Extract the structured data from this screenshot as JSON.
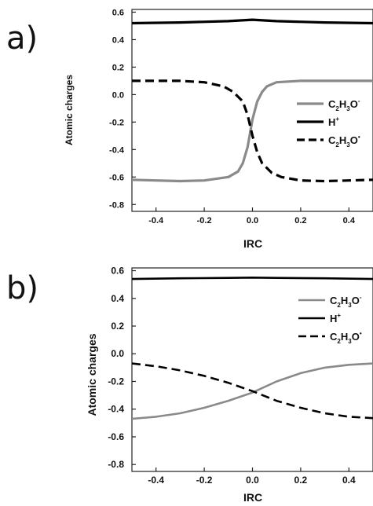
{
  "panels": [
    {
      "label": "a)",
      "ylabel": "Atomic charges",
      "xlabel": "IRC",
      "legend": [
        {
          "base": "C",
          "s1": "2",
          "mid": "H",
          "s2": "3",
          "end": "O",
          "sup": "-"
        },
        {
          "base": "H",
          "sup": "+"
        },
        {
          "base": "C",
          "s1": "2",
          "mid": "H",
          "s2": "3",
          "end": "O",
          "sup": "•"
        }
      ]
    },
    {
      "label": "b)",
      "ylabel": "Atomic charges",
      "xlabel": "IRC",
      "legend": [
        {
          "base": "C",
          "s1": "2",
          "mid": "H",
          "s2": "3",
          "end": "O",
          "sup": "-"
        },
        {
          "base": "H",
          "sup": "+"
        },
        {
          "base": "C",
          "s1": "2",
          "mid": "H",
          "s2": "3",
          "end": "O",
          "sup": "•"
        }
      ]
    }
  ],
  "chart_data": [
    {
      "type": "line",
      "xlabel": "IRC",
      "ylabel": "Atomic charges",
      "xlim": [
        -0.5,
        0.5
      ],
      "ylim": [
        -0.85,
        0.62
      ],
      "xticks": [
        -0.4,
        -0.2,
        0.0,
        0.2,
        0.4
      ],
      "yticks": [
        -0.8,
        -0.6,
        -0.4,
        -0.2,
        0.0,
        0.2,
        0.4,
        0.6
      ],
      "xtick_labels": [
        "-0.4",
        "-0.2",
        "0.0",
        "0.2",
        "0.4"
      ],
      "ytick_labels": [
        "-0.8",
        "-0.6",
        "-0.4",
        "-0.2",
        "0.0",
        "0.2",
        "0.4",
        "0.6"
      ],
      "legend_position": "right",
      "series": [
        {
          "style": "solid",
          "color": "#8a8a8a",
          "x": [
            -0.5,
            -0.4,
            -0.3,
            -0.2,
            -0.1,
            -0.06,
            -0.04,
            -0.02,
            0.0,
            0.02,
            0.04,
            0.06,
            0.1,
            0.2,
            0.3,
            0.4,
            0.5
          ],
          "y": [
            -0.62,
            -0.625,
            -0.63,
            -0.625,
            -0.6,
            -0.56,
            -0.5,
            -0.38,
            -0.18,
            -0.05,
            0.02,
            0.06,
            0.09,
            0.1,
            0.1,
            0.1,
            0.1
          ]
        },
        {
          "style": "solid",
          "color": "#000000",
          "x": [
            -0.5,
            -0.3,
            -0.1,
            0.0,
            0.1,
            0.3,
            0.5
          ],
          "y": [
            0.52,
            0.525,
            0.535,
            0.545,
            0.535,
            0.525,
            0.52
          ]
        },
        {
          "style": "dashed",
          "color": "#000000",
          "x": [
            -0.5,
            -0.4,
            -0.3,
            -0.2,
            -0.12,
            -0.08,
            -0.04,
            -0.02,
            0.0,
            0.02,
            0.04,
            0.08,
            0.12,
            0.2,
            0.3,
            0.4,
            0.5
          ],
          "y": [
            0.1,
            0.1,
            0.1,
            0.09,
            0.06,
            0.02,
            -0.05,
            -0.15,
            -0.3,
            -0.42,
            -0.5,
            -0.57,
            -0.6,
            -0.625,
            -0.63,
            -0.625,
            -0.62
          ]
        }
      ]
    },
    {
      "type": "line",
      "xlabel": "IRC",
      "ylabel": "Atomic charges",
      "xlim": [
        -0.5,
        0.5
      ],
      "ylim": [
        -0.85,
        0.62
      ],
      "xticks": [
        -0.4,
        -0.2,
        0.0,
        0.2,
        0.4
      ],
      "yticks": [
        -0.8,
        -0.6,
        -0.4,
        -0.2,
        0.0,
        0.2,
        0.4,
        0.6
      ],
      "xtick_labels": [
        "-0.4",
        "-0.2",
        "0.0",
        "0.2",
        "0.4"
      ],
      "ytick_labels": [
        "-0.8",
        "-0.6",
        "-0.4",
        "-0.2",
        "0.0",
        "0.2",
        "0.4",
        "0.6"
      ],
      "legend_position": "right",
      "series": [
        {
          "style": "solid",
          "color": "#8a8a8a",
          "x": [
            -0.5,
            -0.4,
            -0.3,
            -0.2,
            -0.1,
            0.0,
            0.1,
            0.2,
            0.3,
            0.4,
            0.5
          ],
          "y": [
            -0.47,
            -0.455,
            -0.43,
            -0.39,
            -0.34,
            -0.28,
            -0.2,
            -0.14,
            -0.1,
            -0.08,
            -0.07
          ]
        },
        {
          "style": "solid",
          "color": "#000000",
          "x": [
            -0.5,
            -0.3,
            -0.1,
            0.0,
            0.1,
            0.3,
            0.5
          ],
          "y": [
            0.54,
            0.545,
            0.548,
            0.55,
            0.548,
            0.545,
            0.54
          ]
        },
        {
          "style": "dashed",
          "color": "#000000",
          "x": [
            -0.5,
            -0.4,
            -0.3,
            -0.2,
            -0.1,
            0.0,
            0.1,
            0.2,
            0.3,
            0.4,
            0.5
          ],
          "y": [
            -0.07,
            -0.09,
            -0.12,
            -0.16,
            -0.21,
            -0.27,
            -0.34,
            -0.39,
            -0.43,
            -0.455,
            -0.465
          ]
        }
      ]
    }
  ]
}
